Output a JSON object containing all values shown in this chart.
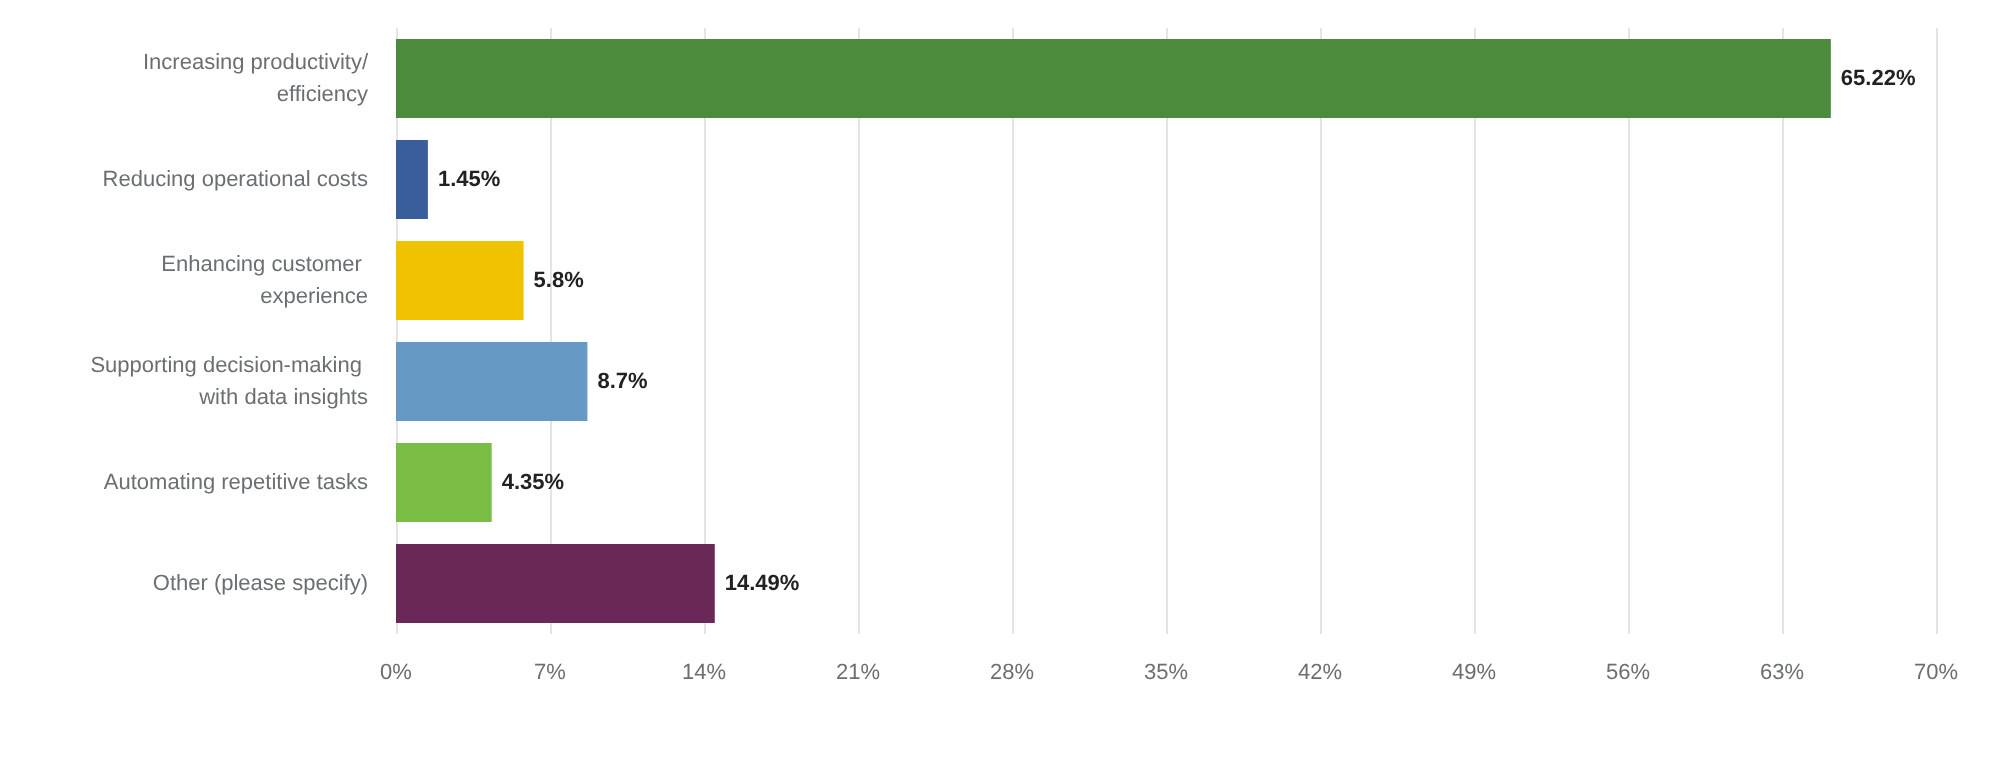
{
  "chart_data": {
    "type": "bar",
    "orientation": "horizontal",
    "categories": [
      "Increasing productivity/efficiency",
      "Reducing operational costs",
      "Enhancing customer experience",
      "Supporting decision-making with data insights",
      "Automating repetitive tasks",
      "Other (please specify)"
    ],
    "values": [
      65.22,
      1.45,
      5.8,
      8.7,
      4.35,
      14.49
    ],
    "colors": [
      "#4b8b3b",
      "#3a5e9c",
      "#efc300",
      "#6699c4",
      "#7abd45",
      "#6a2858"
    ],
    "value_labels": [
      "65.22%",
      "1.45%",
      "5.8%",
      "8.7%",
      "4.35%",
      "14.49%"
    ],
    "xlim": [
      0,
      70
    ],
    "xticks": [
      {
        "value": 0,
        "label": "0%"
      },
      {
        "value": 7,
        "label": "7%"
      },
      {
        "value": 14,
        "label": "14%"
      },
      {
        "value": 21,
        "label": "21%"
      },
      {
        "value": 28,
        "label": "28%"
      },
      {
        "value": 35,
        "label": "35%"
      },
      {
        "value": 42,
        "label": "42%"
      },
      {
        "value": 49,
        "label": "49%"
      },
      {
        "value": 56,
        "label": "56%"
      },
      {
        "value": 63,
        "label": "63%"
      },
      {
        "value": 70,
        "label": "70%"
      }
    ],
    "grid": "x"
  }
}
